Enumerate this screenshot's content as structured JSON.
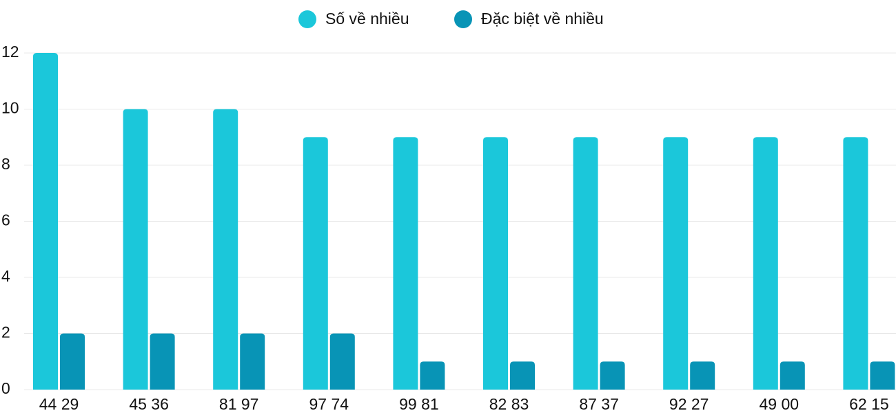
{
  "chart_data": {
    "type": "bar",
    "categories": [
      "44 29",
      "45 36",
      "81 97",
      "97 74",
      "99 81",
      "82 83",
      "87 37",
      "92 27",
      "49 00",
      "62 15"
    ],
    "series": [
      {
        "name": "Số về nhiều",
        "color": "#1bc7da",
        "values": [
          12,
          10,
          10,
          9,
          9,
          9,
          9,
          9,
          9,
          9
        ]
      },
      {
        "name": "Đặc biệt về nhiều",
        "color": "#0894b6",
        "values": [
          2,
          2,
          2,
          2,
          1,
          1,
          1,
          1,
          1,
          1
        ]
      }
    ],
    "ylim": [
      0,
      12
    ],
    "yticks": [
      0,
      2,
      4,
      6,
      8,
      10,
      12
    ],
    "grid": true
  }
}
